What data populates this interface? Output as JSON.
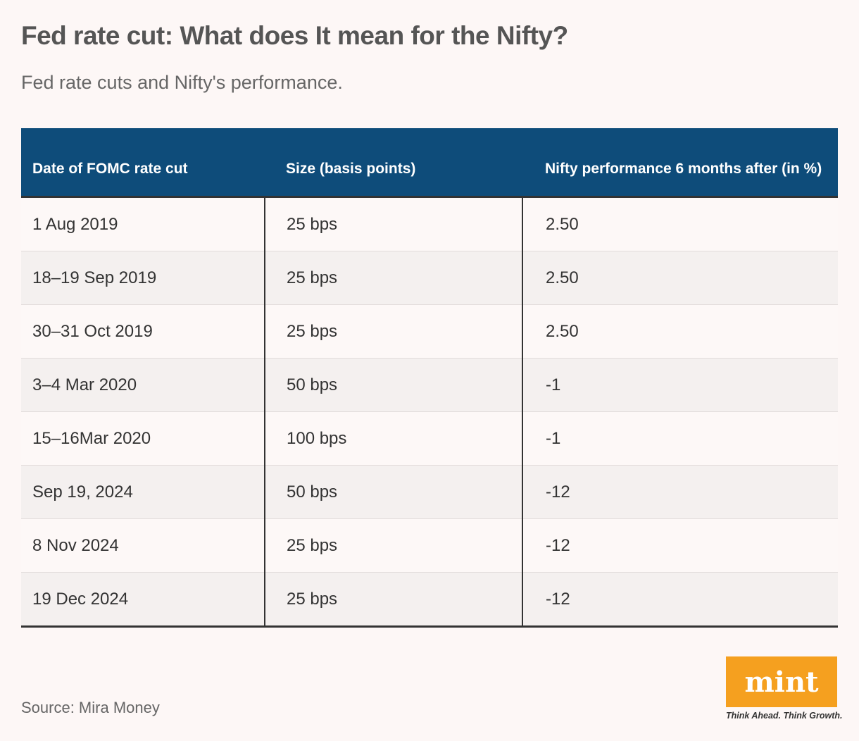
{
  "title": "Fed rate cut: What does It mean for the Nifty?",
  "subtitle": "Fed rate cuts and Nifty's performance.",
  "chart_data": {
    "type": "table",
    "columns": [
      "Date of FOMC rate cut",
      "Size (basis points)",
      "Nifty performance 6 months after (in %)"
    ],
    "rows": [
      [
        "1 Aug 2019",
        "25 bps",
        "2.50"
      ],
      [
        "18–19 Sep 2019",
        "25 bps",
        "2.50"
      ],
      [
        "30–31 Oct 2019",
        "25 bps",
        "2.50"
      ],
      [
        "3–4 Mar 2020",
        "50 bps",
        "-1"
      ],
      [
        "15–16Mar 2020",
        "100 bps",
        "-1"
      ],
      [
        "Sep 19, 2024",
        "50 bps",
        "-12"
      ],
      [
        "8 Nov 2024",
        "25 bps",
        "-12"
      ],
      [
        "19 Dec 2024",
        "25 bps",
        "-12"
      ]
    ],
    "header_color": "#0e4c7a"
  },
  "source": "Source: Mira Money",
  "logo": {
    "text": "mint",
    "tagline": "Think Ahead. Think Growth.",
    "color": "#f5a01f"
  }
}
